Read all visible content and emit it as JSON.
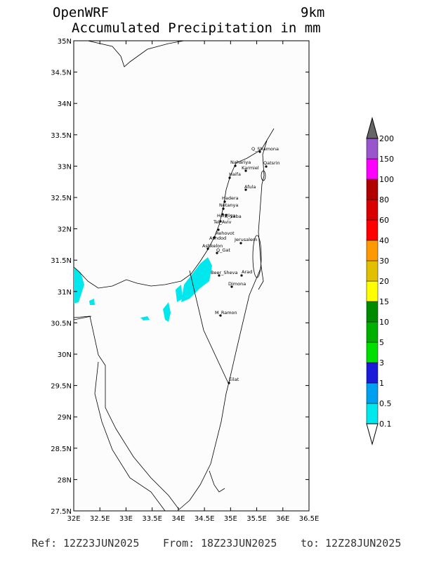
{
  "header": {
    "model": "OpenWRF",
    "resolution": "9km",
    "title": "Accumulated Precipitation in mm"
  },
  "map": {
    "lat_labels": [
      "27.5N",
      "28N",
      "28.5N",
      "29N",
      "29.5N",
      "30N",
      "30.5N",
      "31N",
      "31.5N",
      "32N",
      "32.5N",
      "33N",
      "33.5N",
      "34N",
      "34.5N",
      "35N"
    ],
    "lon_labels": [
      "32E",
      "32.5E",
      "33E",
      "33.5E",
      "34E",
      "34.5E",
      "35E",
      "35.5E",
      "36E",
      "36.5E"
    ],
    "cities": [
      "Q_Shamona",
      "Nahariya",
      "Karmiel",
      "Qatsrin",
      "Haifa",
      "Afula",
      "Hadera",
      "Netanya",
      "Herzliya",
      "K_Saba",
      "Tel_Aviv",
      "Rehovot",
      "Ashdod",
      "Ashkelon",
      "Q_Gat",
      "Jerusalem",
      "Beer_Sheva",
      "Arad",
      "Dimona",
      "M_Ramon",
      "Eilat"
    ]
  },
  "colorbar": {
    "labels": [
      "0.1",
      "0.5",
      "1",
      "3",
      "5",
      "10",
      "15",
      "20",
      "30",
      "40",
      "60",
      "80",
      "100",
      "150",
      "200"
    ],
    "colors": [
      "#00e8ee",
      "#00a0f0",
      "#1a1ad8",
      "#00e000",
      "#00b000",
      "#008a00",
      "#ffff00",
      "#e0c000",
      "#ff9900",
      "#ff0000",
      "#d80000",
      "#b00000",
      "#ff00ff",
      "#9955cc"
    ],
    "over_color": "#666666",
    "under_color": "#ffffff"
  },
  "footer": {
    "ref_label": "Ref:",
    "ref": "12Z23JUN2025",
    "from_label": "From:",
    "from": "18Z23JUN2025",
    "to_label": "to:",
    "to": "12Z28JUN2025"
  }
}
